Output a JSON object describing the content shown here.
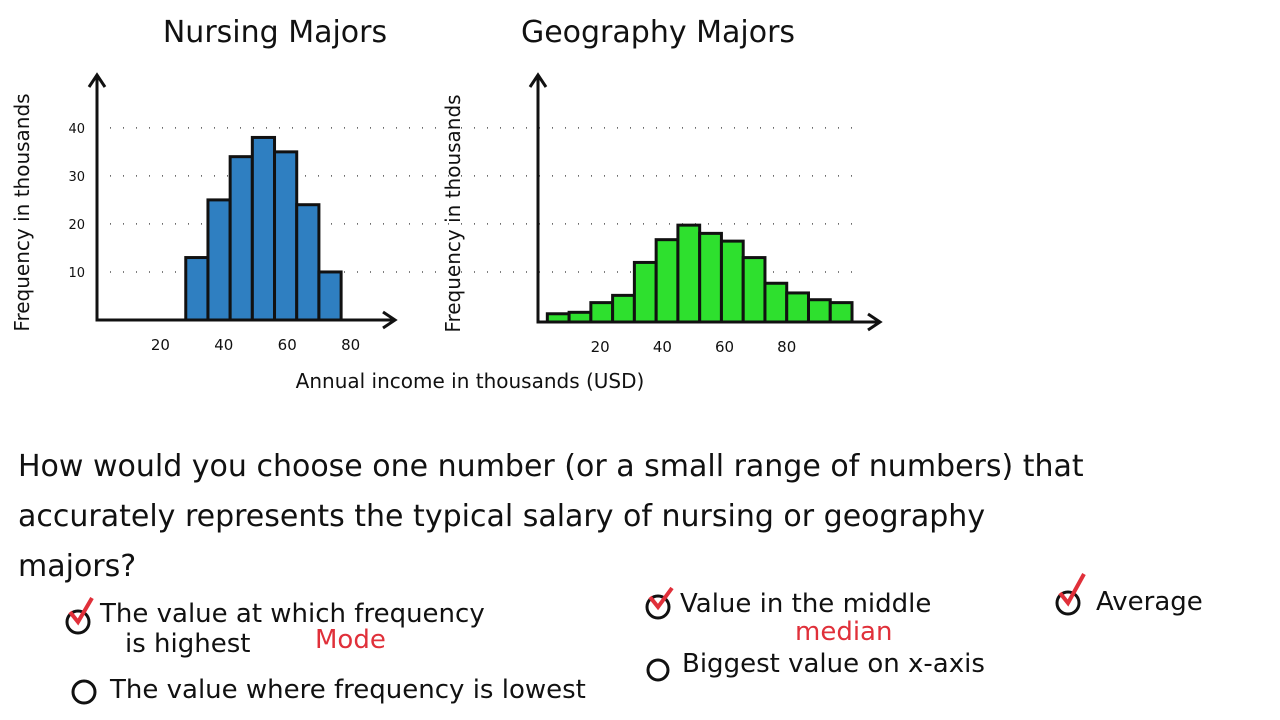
{
  "chart_data": [
    {
      "type": "histogram",
      "title": "Nursing Majors",
      "y_label": "Frequency in thousands",
      "color": "#2f7fc1",
      "bins": [
        28,
        35,
        42,
        49,
        56,
        63,
        70,
        77
      ],
      "values": [
        13,
        25,
        34,
        38,
        35,
        24,
        10
      ],
      "xlim": [
        0,
        94
      ],
      "xticks": [
        20,
        40,
        60,
        80
      ],
      "ylim": [
        0,
        51
      ],
      "yticks": [
        10,
        20,
        30,
        40
      ],
      "grid": true
    },
    {
      "type": "histogram",
      "title": "Geography Majors",
      "y_label": "Frequency in thousands",
      "color": "#2ee02e",
      "bins": [
        3,
        10,
        17,
        24,
        31,
        38,
        45,
        52,
        59,
        66,
        73,
        80,
        87,
        94,
        101
      ],
      "values": [
        1.7,
        2,
        4,
        5.5,
        12.3,
        17,
        20,
        18.3,
        16.7,
        13.3,
        8,
        6,
        4.6,
        4
      ],
      "xlim": [
        0,
        110
      ],
      "xticks": [
        20,
        40,
        60,
        80
      ],
      "ylim": [
        0,
        51
      ]
    }
  ],
  "x_label": "Annual income in thousands (USD)",
  "question": [
    "How would you choose one number (or a small range of numbers) that",
    "accurately represents the typical salary of nursing or geography",
    "majors?"
  ],
  "options": [
    {
      "text": [
        "The value at which frequency",
        "is highest"
      ],
      "note": "Mode"
    },
    {
      "text": [
        "Value in the middle"
      ],
      "note": "median"
    },
    {
      "text": [
        "Average"
      ]
    },
    {
      "text": [
        "The value where frequency is lowest"
      ]
    },
    {
      "text": [
        "Biggest value on x-axis"
      ]
    }
  ]
}
